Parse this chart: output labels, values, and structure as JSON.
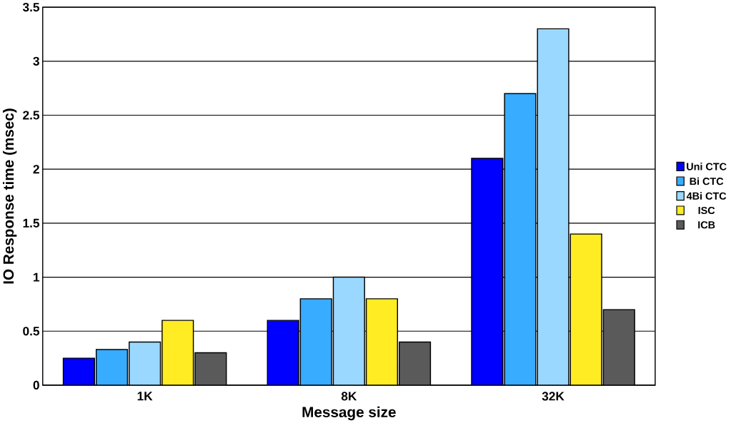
{
  "chart_data": {
    "type": "bar",
    "xlabel": "Message size",
    "ylabel": "IO Response time (msec)",
    "categories": [
      "1K",
      "8K",
      "32K"
    ],
    "series": [
      {
        "name": "Uni CTC",
        "color": "#0000ff",
        "values": [
          0.25,
          0.6,
          2.1
        ]
      },
      {
        "name": "Bi CTC",
        "color": "#38acff",
        "values": [
          0.33,
          0.8,
          2.7
        ]
      },
      {
        "name": "4Bi CTC",
        "color": "#9ad8ff",
        "values": [
          0.4,
          1.0,
          3.3
        ]
      },
      {
        "name": "ISC",
        "color": "#ffec22",
        "values": [
          0.6,
          0.8,
          1.4
        ]
      },
      {
        "name": "ICB",
        "color": "#5a5a5a",
        "values": [
          0.3,
          0.4,
          0.7
        ]
      }
    ],
    "ylim": [
      0,
      3.5
    ],
    "yticks": [
      0,
      0.5,
      1,
      1.5,
      2,
      2.5,
      3,
      3.5
    ],
    "grid": "y",
    "legend": "right"
  }
}
